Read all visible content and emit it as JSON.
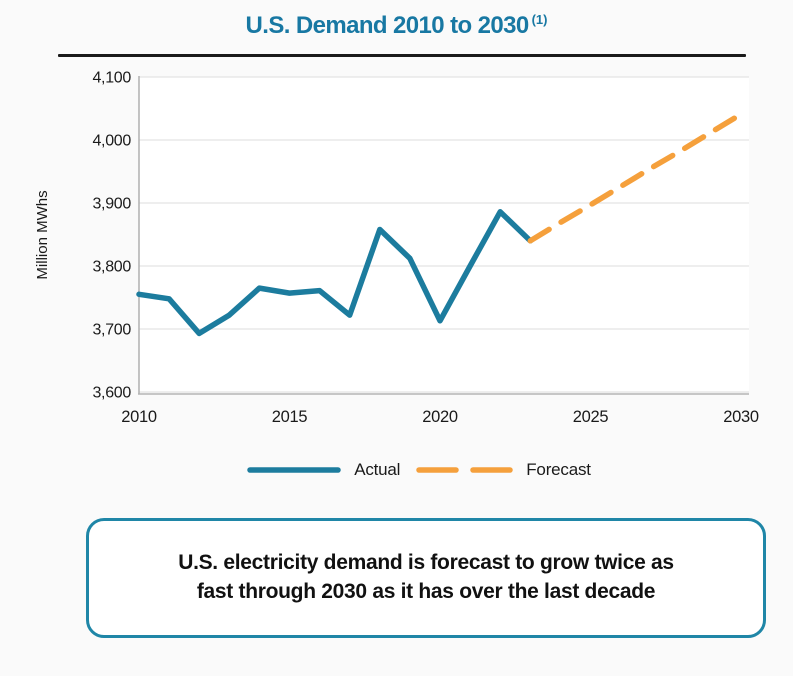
{
  "header": {
    "title": "U.S. Demand 2010 to 2030",
    "footnote_marker": "(1)"
  },
  "legend": {
    "actual_label": "Actual",
    "forecast_label": "Forecast"
  },
  "callout": {
    "line1": "U.S. electricity demand is forecast to grow twice as",
    "line2": "fast through 2030 as it has over the last decade"
  },
  "colors": {
    "title_teal": "#1878a3",
    "actual_line": "#1c7c9e",
    "forecast_line": "#f5a03c",
    "callout_border": "#1f86a7",
    "grid": "#e3e3e3",
    "spine": "#b5b5b5",
    "text": "#1a1a1a"
  },
  "chart_data": {
    "type": "line",
    "title": "U.S. Demand 2010 to 2030 (1)",
    "xlabel": "",
    "ylabel": "Million MWhs",
    "xlim": [
      2010,
      2030
    ],
    "ylim": [
      3600,
      4100
    ],
    "x_ticks": [
      2010,
      2015,
      2020,
      2025,
      2030
    ],
    "y_ticks": [
      3600,
      3700,
      3800,
      3900,
      4000,
      4100
    ],
    "y_tick_labels": [
      "3,600",
      "3,700",
      "3,800",
      "3,900",
      "4,000",
      "4,100"
    ],
    "grid": true,
    "legend_position": "bottom",
    "series": [
      {
        "name": "Actual",
        "style": "solid",
        "color": "#1c7c9e",
        "x": [
          2010,
          2011,
          2012,
          2013,
          2014,
          2015,
          2016,
          2017,
          2018,
          2019,
          2020,
          2021,
          2022,
          2023
        ],
        "values": [
          3755,
          3748,
          3693,
          3722,
          3765,
          3757,
          3761,
          3722,
          3858,
          3812,
          3713,
          3800,
          3886,
          3840
        ]
      },
      {
        "name": "Forecast",
        "style": "dashed",
        "color": "#f5a03c",
        "x": [
          2023,
          2024,
          2025,
          2026,
          2027,
          2028,
          2029,
          2030
        ],
        "values": [
          3840,
          3869,
          3897,
          3926,
          3955,
          3983,
          4012,
          4041
        ]
      }
    ]
  }
}
